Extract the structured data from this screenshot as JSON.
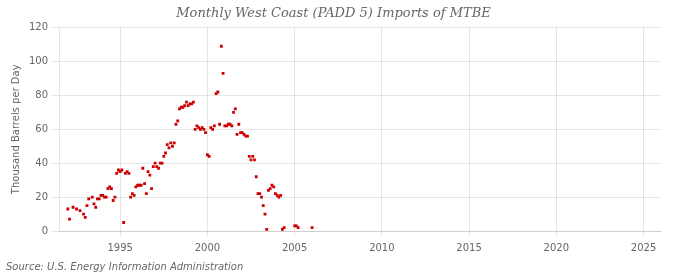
{
  "chart_data": {
    "type": "scatter",
    "title": "Monthly West Coast (PADD 5) Imports of MTBE",
    "y_label": "Thousand Barrels per Day",
    "source": "Source: U.S. Energy Information Administration",
    "color": "#cc0000",
    "marker": "square",
    "grid": true,
    "xlim": [
      1991.5,
      2026
    ],
    "ylim": [
      0,
      120
    ],
    "xticks": [
      1995,
      2000,
      2005,
      2010,
      2015,
      2020,
      2025
    ],
    "yticks": [
      0,
      20,
      40,
      60,
      80,
      100,
      120
    ],
    "x": [
      1992.0,
      1992.1,
      1992.3,
      1992.5,
      1992.7,
      1992.9,
      1993.0,
      1993.1,
      1993.2,
      1993.4,
      1993.5,
      1993.6,
      1993.7,
      1993.8,
      1993.9,
      1994.0,
      1994.1,
      1994.2,
      1994.3,
      1994.4,
      1994.5,
      1994.6,
      1994.7,
      1994.8,
      1994.9,
      1995.0,
      1995.1,
      1995.2,
      1995.3,
      1995.4,
      1995.5,
      1995.6,
      1995.7,
      1995.8,
      1995.9,
      1996.0,
      1996.1,
      1996.2,
      1996.3,
      1996.4,
      1996.5,
      1996.6,
      1996.7,
      1996.8,
      1996.9,
      1997.0,
      1997.1,
      1997.2,
      1997.3,
      1997.4,
      1997.5,
      1997.6,
      1997.7,
      1997.8,
      1997.9,
      1998.0,
      1998.1,
      1998.2,
      1998.3,
      1998.4,
      1998.5,
      1998.6,
      1998.7,
      1998.8,
      1998.9,
      1999.0,
      1999.1,
      1999.2,
      1999.3,
      1999.4,
      1999.5,
      1999.6,
      1999.7,
      1999.8,
      1999.9,
      2000.0,
      2000.1,
      2000.2,
      2000.3,
      2000.4,
      2000.5,
      2000.6,
      2000.7,
      2000.8,
      2000.9,
      2001.0,
      2001.1,
      2001.2,
      2001.3,
      2001.4,
      2001.5,
      2001.6,
      2001.7,
      2001.8,
      2001.9,
      2002.0,
      2002.1,
      2002.2,
      2002.3,
      2002.4,
      2002.5,
      2002.6,
      2002.7,
      2002.8,
      2002.9,
      2003.0,
      2003.1,
      2003.2,
      2003.3,
      2003.4,
      2003.5,
      2003.6,
      2003.7,
      2003.8,
      2003.9,
      2004.0,
      2004.1,
      2004.2,
      2004.3,
      2004.4,
      2005.0,
      2005.1,
      2005.2,
      2006.0
    ],
    "values": [
      13,
      7,
      14,
      13,
      12,
      10,
      8,
      15,
      19,
      20,
      16,
      14,
      19,
      19,
      21,
      21,
      20,
      20,
      25,
      26,
      25,
      18,
      20,
      34,
      36,
      35,
      36,
      5,
      34,
      35,
      34,
      20,
      22,
      21,
      26,
      27,
      27,
      27,
      37,
      28,
      22,
      35,
      33,
      25,
      38,
      40,
      38,
      37,
      40,
      40,
      44,
      46,
      51,
      49,
      52,
      50,
      52,
      63,
      65,
      72,
      73,
      73,
      74,
      76,
      74,
      75,
      75,
      76,
      60,
      62,
      61,
      60,
      61,
      60,
      58,
      45,
      44,
      61,
      60,
      62,
      81,
      82,
      63,
      109,
      93,
      62,
      62,
      63,
      63,
      62,
      70,
      72,
      57,
      63,
      58,
      58,
      57,
      56,
      56,
      44,
      42,
      44,
      42,
      32,
      22,
      22,
      20,
      15,
      10,
      1,
      24,
      25,
      27,
      26,
      22,
      21,
      20,
      21,
      1,
      2,
      3,
      3,
      2,
      2
    ]
  }
}
